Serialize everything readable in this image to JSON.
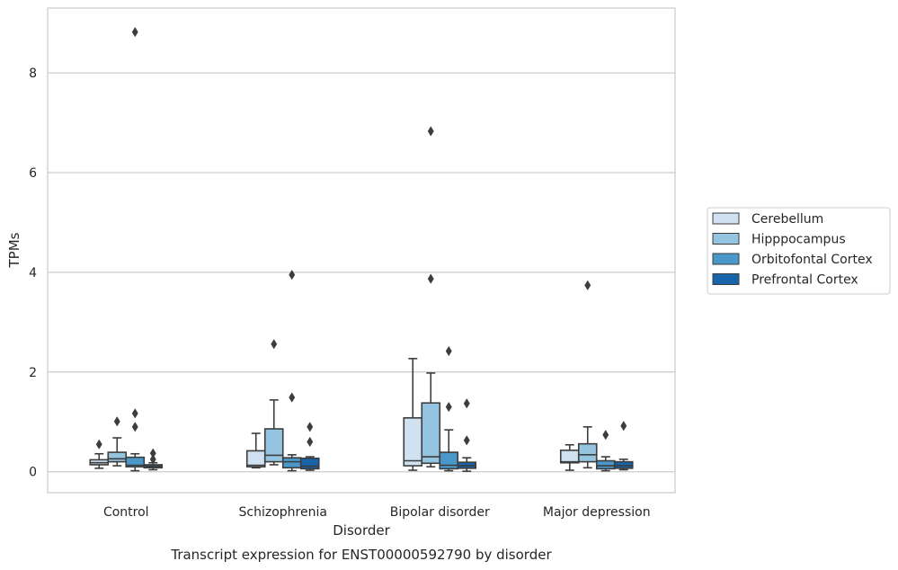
{
  "chart_data": {
    "type": "box",
    "caption": "Transcript expression for ENST00000592790 by disorder",
    "xlabel": "Disorder",
    "ylabel": "TPMs",
    "ylim": [
      -0.42,
      9.3
    ],
    "yticks": [
      0,
      2,
      4,
      6,
      8
    ],
    "grid": "horizontal",
    "legend_position": "right",
    "categories": [
      "Control",
      "Schizophrenia",
      "Bipolar disorder",
      "Major depression"
    ],
    "series": [
      {
        "name": "Cerebellum",
        "color": "#d0e1f2",
        "boxes": [
          {
            "whislo": 0.07,
            "q1": 0.14,
            "med": 0.18,
            "q3": 0.24,
            "whishi": 0.36,
            "fliers": [
              0.55
            ]
          },
          {
            "whislo": 0.08,
            "q1": 0.1,
            "med": 0.13,
            "q3": 0.42,
            "whishi": 0.77,
            "fliers": []
          },
          {
            "whislo": 0.03,
            "q1": 0.12,
            "med": 0.22,
            "q3": 1.08,
            "whishi": 2.27,
            "fliers": []
          },
          {
            "whislo": 0.03,
            "q1": 0.18,
            "med": 0.2,
            "q3": 0.43,
            "whishi": 0.54,
            "fliers": []
          }
        ]
      },
      {
        "name": "Hipppocampus",
        "color": "#94c4df",
        "boxes": [
          {
            "whislo": 0.12,
            "q1": 0.2,
            "med": 0.26,
            "q3": 0.39,
            "whishi": 0.68,
            "fliers": [
              1.01
            ]
          },
          {
            "whislo": 0.14,
            "q1": 0.2,
            "med": 0.33,
            "q3": 0.86,
            "whishi": 1.44,
            "fliers": [
              2.56
            ]
          },
          {
            "whislo": 0.1,
            "q1": 0.17,
            "med": 0.3,
            "q3": 1.38,
            "whishi": 1.98,
            "fliers": [
              3.87,
              6.83
            ]
          },
          {
            "whislo": 0.08,
            "q1": 0.2,
            "med": 0.34,
            "q3": 0.56,
            "whishi": 0.9,
            "fliers": [
              3.74
            ]
          }
        ]
      },
      {
        "name": "Orbitofontal Cortex",
        "color": "#4a98c9",
        "boxes": [
          {
            "whislo": 0.02,
            "q1": 0.1,
            "med": 0.13,
            "q3": 0.29,
            "whishi": 0.36,
            "fliers": [
              0.9,
              1.17,
              8.82
            ]
          },
          {
            "whislo": 0.02,
            "q1": 0.08,
            "med": 0.2,
            "q3": 0.28,
            "whishi": 0.34,
            "fliers": [
              1.49,
              3.95
            ]
          },
          {
            "whislo": 0.02,
            "q1": 0.06,
            "med": 0.13,
            "q3": 0.39,
            "whishi": 0.84,
            "fliers": [
              1.3,
              2.42
            ]
          },
          {
            "whislo": 0.02,
            "q1": 0.06,
            "med": 0.12,
            "q3": 0.22,
            "whishi": 0.3,
            "fliers": [
              0.74
            ]
          }
        ]
      },
      {
        "name": "Prefrontal Cortex",
        "color": "#1764ab",
        "boxes": [
          {
            "whislo": 0.04,
            "q1": 0.08,
            "med": 0.11,
            "q3": 0.14,
            "whishi": 0.18,
            "fliers": [
              0.25,
              0.37
            ]
          },
          {
            "whislo": 0.03,
            "q1": 0.06,
            "med": 0.11,
            "q3": 0.27,
            "whishi": 0.3,
            "fliers": [
              0.6,
              0.9
            ]
          },
          {
            "whislo": 0.01,
            "q1": 0.07,
            "med": 0.12,
            "q3": 0.19,
            "whishi": 0.28,
            "fliers": [
              0.63,
              1.37
            ]
          },
          {
            "whislo": 0.04,
            "q1": 0.07,
            "med": 0.12,
            "q3": 0.2,
            "whishi": 0.25,
            "fliers": [
              0.92
            ]
          }
        ]
      }
    ]
  }
}
